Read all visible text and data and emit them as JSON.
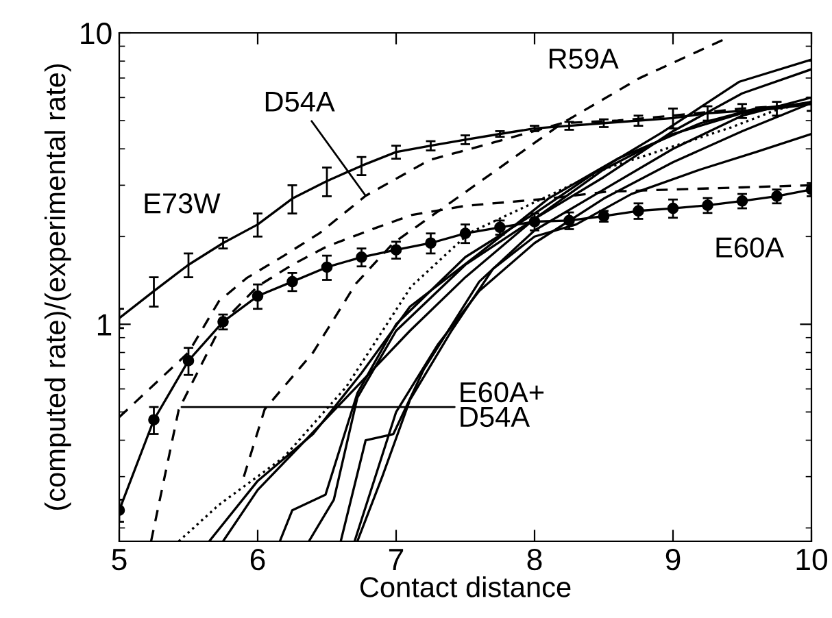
{
  "chart_data": {
    "type": "line",
    "xlabel": "Contact distance",
    "ylabel": "(computed rate)/(experimental rate)",
    "log": "y",
    "xlim": [
      5,
      10
    ],
    "ylim": [
      0.18,
      10
    ],
    "xticks": [
      5,
      6,
      7,
      8,
      9,
      10
    ],
    "yticks": [
      1,
      10
    ],
    "grid": false,
    "legend": false,
    "series": [
      {
        "color": "#000000",
        "line_style": "solid",
        "marker": "none",
        "x": [
          5,
          5.25,
          5.5,
          5.75,
          6,
          6.25,
          6.5,
          6.75,
          7,
          7.25,
          7.5,
          7.75,
          8,
          8.25,
          8.5,
          8.75,
          9,
          9.25,
          9.5,
          9.75,
          10
        ],
        "values": [
          1.05,
          1.3,
          1.6,
          1.9,
          2.2,
          2.7,
          3.1,
          3.5,
          3.9,
          4.1,
          4.3,
          4.5,
          4.7,
          4.8,
          4.9,
          5.0,
          5.1,
          5.3,
          5.4,
          5.5,
          5.7
        ],
        "errors": [
          0.08,
          0.15,
          0.15,
          0.08,
          0.2,
          0.3,
          0.35,
          0.25,
          0.2,
          0.15,
          0.15,
          0.1,
          0.1,
          0.15,
          0.15,
          0.2,
          0.4,
          0.3,
          0.3,
          0.3,
          0.3
        ]
      },
      {
        "color": "#000000",
        "line_style": "solid",
        "marker": "circle",
        "x": [
          5,
          5.25,
          5.5,
          5.75,
          6,
          6.25,
          6.5,
          6.75,
          7,
          7.25,
          7.5,
          7.75,
          8,
          8.25,
          8.5,
          8.75,
          9,
          9.25,
          9.5,
          9.75,
          10
        ],
        "values": [
          0.23,
          0.47,
          0.75,
          1.02,
          1.25,
          1.4,
          1.57,
          1.7,
          1.8,
          1.9,
          2.05,
          2.15,
          2.25,
          2.27,
          2.35,
          2.45,
          2.5,
          2.56,
          2.65,
          2.75,
          2.9
        ],
        "errors": [
          0.02,
          0.05,
          0.08,
          0.06,
          0.12,
          0.1,
          0.15,
          0.12,
          0.12,
          0.15,
          0.15,
          0.12,
          0.15,
          0.15,
          0.1,
          0.15,
          0.18,
          0.15,
          0.15,
          0.15,
          0.15
        ]
      },
      {
        "color": "#000000",
        "line_style": "dashed",
        "marker": "none",
        "x": [
          5.9,
          6.05,
          6.4,
          6.71,
          6.98,
          7.6,
          8.2,
          8.76,
          9.39
        ],
        "values": [
          0.3,
          0.51,
          0.8,
          1.38,
          1.9,
          3.07,
          4.9,
          7.0,
          9.6
        ]
      },
      {
        "color": "#000000",
        "line_style": "dashed",
        "marker": "none",
        "x": [
          5,
          5.5,
          5.72,
          5.92,
          6.19,
          6.45,
          6.78,
          7.24,
          7.7,
          8.2,
          8.6,
          9.0,
          9.5,
          10
        ],
        "values": [
          0.48,
          0.8,
          1.2,
          1.44,
          1.72,
          2.06,
          2.76,
          3.66,
          4.2,
          4.9,
          5.0,
          5.2,
          5.5,
          5.7
        ]
      },
      {
        "color": "#000000",
        "line_style": "dashed",
        "marker": "none",
        "x": [
          5.23,
          5.43,
          5.75,
          6.0,
          6.25,
          6.5,
          6.84,
          7.11,
          7.5,
          8.1,
          8.52,
          9.0,
          9.5,
          10
        ],
        "values": [
          0.18,
          0.51,
          1.02,
          1.35,
          1.6,
          1.85,
          2.13,
          2.37,
          2.55,
          2.7,
          2.85,
          2.9,
          2.95,
          3.0
        ]
      },
      {
        "color": "#000000",
        "line_style": "dotted",
        "marker": "none",
        "x": [
          5.43,
          5.72,
          6.19,
          6.64,
          7.11,
          7.53,
          8.1,
          8.52,
          9.42,
          9.75,
          10
        ],
        "values": [
          0.18,
          0.24,
          0.35,
          0.61,
          1.35,
          2.06,
          2.76,
          3.43,
          4.74,
          5.45,
          5.8
        ]
      },
      {
        "color": "#000000",
        "line_style": "solid",
        "marker": "none",
        "x": [
          5.65,
          6.0,
          6.4,
          6.75,
          7.1,
          7.6,
          8.1,
          8.6,
          9.2,
          9.6,
          10
        ],
        "values": [
          0.18,
          0.29,
          0.42,
          0.68,
          1.15,
          1.75,
          2.7,
          3.7,
          4.9,
          5.5,
          5.75
        ]
      },
      {
        "color": "#000000",
        "line_style": "solid",
        "marker": "none",
        "x": [
          5.75,
          6.0,
          6.3,
          6.7,
          7.1,
          7.5,
          8.0,
          8.5,
          9.0,
          9.5,
          10
        ],
        "values": [
          0.18,
          0.27,
          0.38,
          0.6,
          0.95,
          1.45,
          2.3,
          3.4,
          4.5,
          5.3,
          5.8
        ]
      },
      {
        "color": "#000000",
        "line_style": "solid",
        "marker": "none",
        "x": [
          6.16,
          6.25,
          6.49,
          6.72,
          7.0,
          7.5,
          8.0,
          8.43,
          8.92,
          9.48,
          10
        ],
        "values": [
          0.18,
          0.23,
          0.26,
          0.58,
          1.0,
          1.7,
          2.4,
          3.3,
          4.55,
          6.8,
          8.1
        ]
      },
      {
        "color": "#000000",
        "line_style": "solid",
        "marker": "none",
        "x": [
          6.37,
          6.55,
          6.72,
          7.0,
          7.5,
          8.0,
          8.5,
          9.0,
          9.5,
          10
        ],
        "values": [
          0.18,
          0.25,
          0.56,
          0.95,
          1.6,
          2.3,
          3.2,
          4.6,
          6.2,
          7.5
        ]
      },
      {
        "color": "#000000",
        "line_style": "solid",
        "marker": "none",
        "x": [
          6.6,
          6.78,
          6.98,
          7.2,
          7.6,
          8.0,
          8.5,
          9.0,
          9.5,
          10
        ],
        "values": [
          0.18,
          0.4,
          0.42,
          0.7,
          1.4,
          2.1,
          2.9,
          4.0,
          5.2,
          6.0
        ]
      },
      {
        "color": "#000000",
        "line_style": "solid",
        "marker": "none",
        "x": [
          6.7,
          6.85,
          7.0,
          7.3,
          7.6,
          8.0,
          8.5,
          9.0,
          9.5,
          10
        ],
        "values": [
          0.18,
          0.3,
          0.5,
          0.85,
          1.3,
          1.9,
          2.7,
          3.6,
          4.6,
          5.75
        ]
      },
      {
        "color": "#000000",
        "line_style": "solid",
        "marker": "none",
        "x": [
          6.72,
          6.9,
          7.1,
          7.4,
          7.7,
          8.0,
          8.3,
          8.7,
          9.2,
          9.6,
          10
        ],
        "values": [
          0.18,
          0.3,
          0.55,
          0.95,
          1.55,
          2.0,
          2.2,
          2.8,
          3.4,
          3.9,
          4.5
        ]
      }
    ],
    "annotations": [
      {
        "text": "E73W",
        "x": 5.5,
        "y": 1.6
      },
      {
        "text": "R59A",
        "x": 8.76,
        "y": 7.0
      },
      {
        "text": "E60A",
        "x": 9.5,
        "y": 2.65
      },
      {
        "text": "D54A",
        "x": 6.78,
        "y": 2.76
      },
      {
        "text": "E60A+\nD54A",
        "x": 5.45,
        "y": 0.52
      }
    ]
  }
}
